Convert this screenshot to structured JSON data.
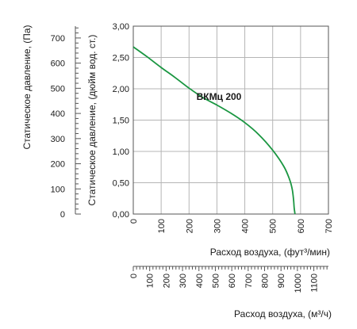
{
  "chart_data": {
    "type": "line",
    "title": "",
    "series": [
      {
        "name": "ВКМц 200",
        "color": "#1a9641",
        "x": [
          0,
          50,
          100,
          150,
          200,
          250,
          300,
          350,
          400,
          450,
          500,
          540,
          560,
          570,
          575,
          577,
          580
        ],
        "y": [
          2.67,
          2.51,
          2.34,
          2.18,
          2.01,
          1.86,
          1.74,
          1.61,
          1.46,
          1.27,
          1.02,
          0.76,
          0.56,
          0.4,
          0.22,
          0.1,
          0.0
        ]
      }
    ],
    "series_label_text": "ВКМц 200",
    "x_axis": {
      "label": "Расход воздуха, (фут³/мин)",
      "range": [
        0,
        700
      ],
      "ticks": [
        "0",
        "100",
        "200",
        "300",
        "400",
        "500",
        "600",
        "700"
      ]
    },
    "x2_axis": {
      "label": "Расход воздуха, (м³/ч)",
      "range": [
        0,
        1189
      ],
      "ticks": [
        "0",
        "100",
        "200",
        "300",
        "400",
        "500",
        "600",
        "700",
        "800",
        "900",
        "1000",
        "1100"
      ]
    },
    "y_axis": {
      "label": "Статическое давление, (дюйм вод. ст.)",
      "range": [
        0,
        3.0
      ],
      "ticks": [
        "0,00",
        "0,50",
        "1,00",
        "1,50",
        "2,00",
        "2,50",
        "3,00"
      ]
    },
    "y2_axis": {
      "label": "Статическое давление, (Па)",
      "range": [
        0,
        747
      ],
      "ticks": [
        "0",
        "100",
        "200",
        "300",
        "400",
        "500",
        "600",
        "700"
      ]
    },
    "grid": true
  }
}
